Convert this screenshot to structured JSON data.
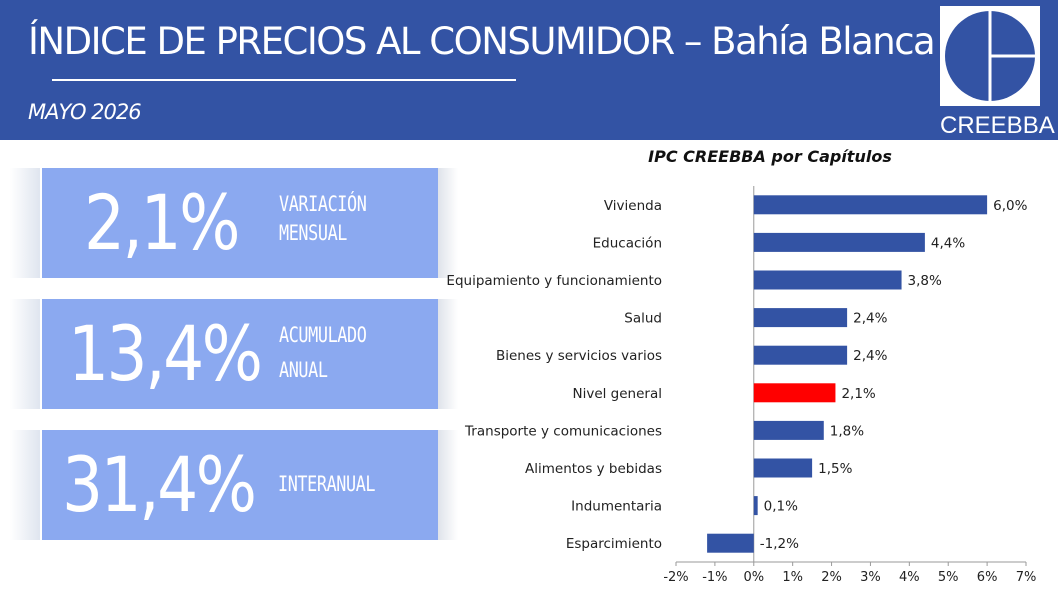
{
  "header": {
    "title": "ÍNDICE DE PRECIOS AL CONSUMIDOR – Bahía Blanca",
    "subtitle": "MAYO 2026",
    "logo_text": "CREEBBA"
  },
  "stats": [
    {
      "value": "2,1%",
      "label_line1": "VARIACIÓN",
      "label_line2": "MENSUAL"
    },
    {
      "value": "13,4%",
      "label_line1": "ACUMULADO",
      "label_line2": "ANUAL"
    },
    {
      "value": "31,4%",
      "label_line1": "INTERANUAL",
      "label_line2": ""
    }
  ],
  "colors": {
    "header_bg": "#3353a4",
    "stat_box": "#8ba9f0",
    "bar": "#3353a4",
    "bar_highlight": "#ff0000"
  },
  "chart_data": {
    "type": "bar",
    "orientation": "horizontal",
    "title": "IPC CREEBBA por Capítulos",
    "categories": [
      "Vivienda",
      "Educación",
      "Equipamiento y funcionamiento",
      "Salud",
      "Bienes y servicios varios",
      "Nivel general",
      "Transporte y comunicaciones",
      "Alimentos y bebidas",
      "Indumentaria",
      "Esparcimiento"
    ],
    "values": [
      6.0,
      4.4,
      3.8,
      2.4,
      2.4,
      2.1,
      1.8,
      1.5,
      0.1,
      -1.2
    ],
    "data_labels": [
      "6,0%",
      "4,4%",
      "3,8%",
      "2,4%",
      "2,4%",
      "2,1%",
      "1,8%",
      "1,5%",
      "0,1%",
      "-1,2%"
    ],
    "highlight_category": "Nivel general",
    "xlim": [
      -2,
      7
    ],
    "xticks": [
      -2,
      -1,
      0,
      1,
      2,
      3,
      4,
      5,
      6,
      7
    ],
    "xtick_labels": [
      "-2%",
      "-1%",
      "0%",
      "1%",
      "2%",
      "3%",
      "4%",
      "5%",
      "6%",
      "7%"
    ],
    "grid": false,
    "legend": "none"
  }
}
